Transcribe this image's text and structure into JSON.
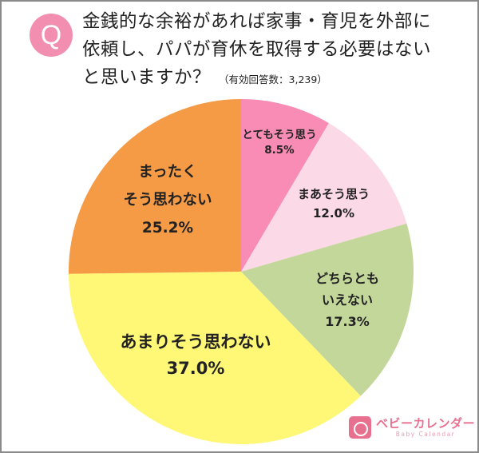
{
  "question": {
    "badge": "Q",
    "line1": "金銭的な余裕があれば家事・育児を外部に",
    "line2": "依頼し、パパが育休を取得する必要はない",
    "line3": "と思いますか？",
    "response_count": "（有効回答数：3,239）"
  },
  "labels": {
    "s0": {
      "line1": "とてもそう思う",
      "pct": "8.5%"
    },
    "s1": {
      "line1": "まあそう思う",
      "pct": "12.0%"
    },
    "s2": {
      "line1": "どちらとも",
      "line2": "いえない",
      "pct": "17.3%"
    },
    "s3": {
      "line1": "あまりそう思わない",
      "pct": "37.0%"
    },
    "s4": {
      "line1": "まったく",
      "line2": "そう思わない",
      "pct": "25.2%"
    }
  },
  "logo": {
    "jp": "ベビーカレンダー",
    "en": "Baby Calendar"
  },
  "chart_data": {
    "type": "pie",
    "title": "金銭的な余裕があれば家事・育児を外部に依頼し、パパが育休を取得する必要はないと思いますか？",
    "subtitle": "有効回答数：3,239",
    "categories": [
      "とてもそう思う",
      "まあそう思う",
      "どちらともいえない",
      "あまりそう思わない",
      "まったくそう思わない"
    ],
    "values": [
      8.5,
      12.0,
      17.3,
      37.0,
      25.2
    ],
    "unit": "%",
    "colors": [
      "#f98cb4",
      "#fcd9e6",
      "#c4d79b",
      "#fff776",
      "#f59a45"
    ],
    "start_angle": "12 o'clock",
    "direction": "clockwise",
    "legend": "none (inline labels)"
  }
}
